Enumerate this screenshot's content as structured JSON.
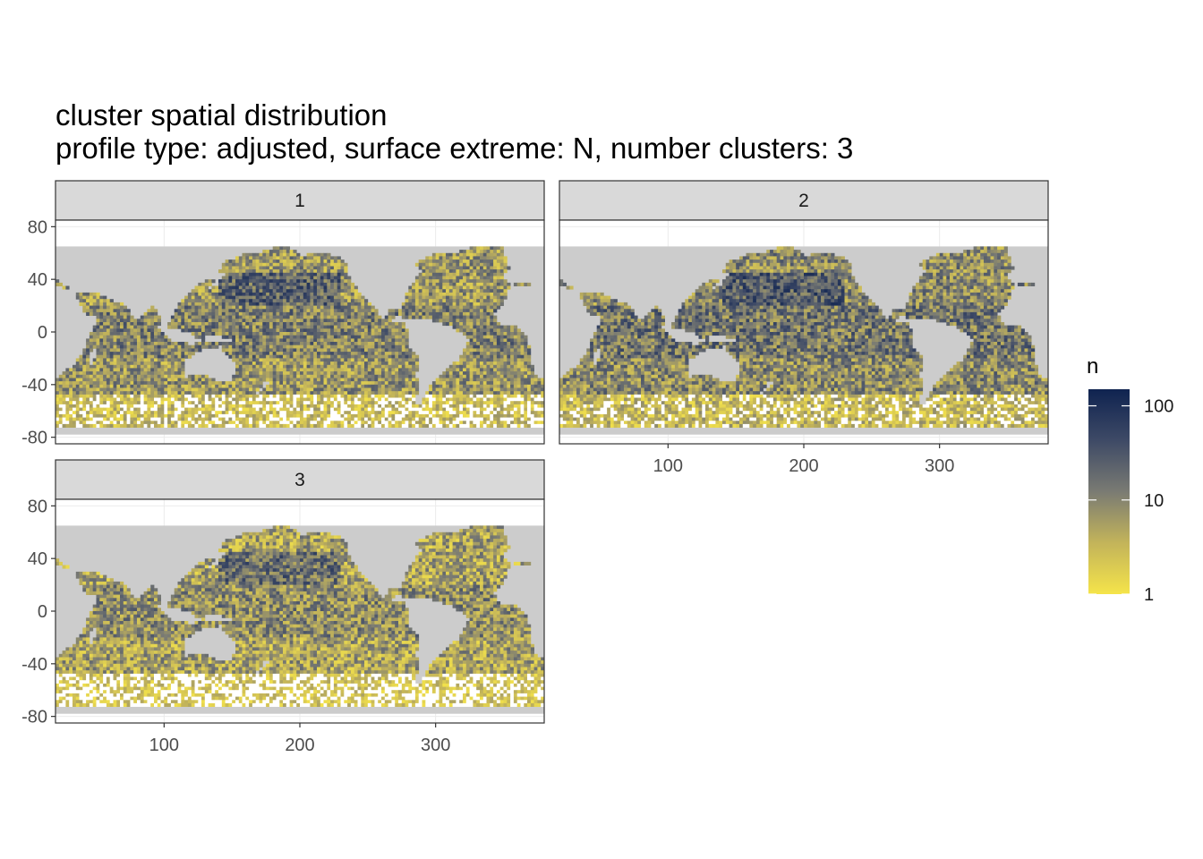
{
  "chart_data": {
    "type": "heatmap",
    "title": "cluster spatial distribution",
    "subtitle": "profile type: adjusted, surface extreme: N, number clusters: 3",
    "facets": [
      "1",
      "2",
      "3"
    ],
    "xlabel": "",
    "ylabel": "",
    "x_ticks": [
      "100",
      "200",
      "300"
    ],
    "y_ticks": [
      "80",
      "40",
      "0",
      "-40",
      "-80"
    ],
    "x_tick_values": [
      100,
      200,
      300
    ],
    "y_tick_values": [
      80,
      40,
      0,
      -40,
      -80
    ],
    "xlim": [
      20,
      380
    ],
    "ylim": [
      -85,
      85
    ],
    "data_lat_range": [
      -78,
      65
    ],
    "fill_variable": "n",
    "fill_scale": "log10",
    "legend": {
      "title": "n",
      "labels": [
        "100",
        "10",
        "1"
      ],
      "label_values": [
        100,
        10,
        1
      ],
      "range": [
        1,
        150
      ],
      "placement": "right"
    },
    "grid": true,
    "colors": {
      "low": "#f5e44a",
      "mid": "#7a7b73",
      "high": "#0f2350",
      "land": "#cccccc",
      "strip": "#d9d9d9",
      "panel_border": "#333333"
    }
  }
}
